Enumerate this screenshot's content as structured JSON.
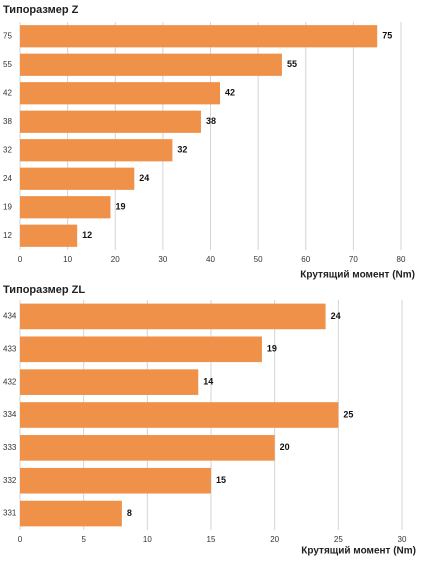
{
  "chart_data": [
    {
      "type": "bar",
      "orientation": "horizontal",
      "title": "Типоразмер Z",
      "categories": [
        "75",
        "55",
        "42",
        "38",
        "32",
        "24",
        "19",
        "12"
      ],
      "values": [
        75,
        55,
        42,
        38,
        32,
        24,
        19,
        12
      ],
      "color": "#f0914a",
      "xlim": [
        0,
        80
      ],
      "xticks": [
        0,
        10,
        20,
        30,
        40,
        50,
        60,
        70,
        80
      ],
      "x_label": "Крутящий момент (Nm)",
      "grid": true
    },
    {
      "type": "bar",
      "orientation": "horizontal",
      "title": "Типоразмер ZL",
      "categories": [
        "434",
        "433",
        "432",
        "334",
        "333",
        "332",
        "331"
      ],
      "values": [
        24,
        19,
        14,
        25,
        20,
        15,
        8
      ],
      "color": "#f0914a",
      "xlim": [
        0,
        30
      ],
      "xticks": [
        0,
        5,
        10,
        15,
        20,
        25,
        30
      ],
      "x_label": "Крутящий момент (Nm)",
      "grid": true
    }
  ]
}
